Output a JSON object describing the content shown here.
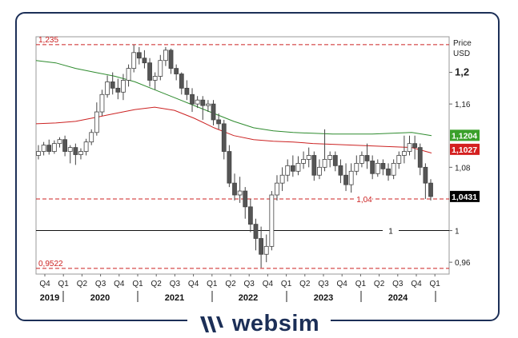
{
  "brand": {
    "name": "websim",
    "logo_icon": "websim-logo-icon"
  },
  "chart_data": {
    "type": "candlestick",
    "title": "",
    "ylabel_lines": [
      "Price",
      "USD"
    ],
    "ylim": [
      0.945,
      1.245
    ],
    "y_ticks": [
      {
        "value": 1.2,
        "label": "1,2",
        "bold": true
      },
      {
        "value": 1.16,
        "label": "1,16"
      },
      {
        "value": 1.08,
        "label": "1,08"
      },
      {
        "value": 1.0,
        "label": "1"
      },
      {
        "value": 0.96,
        "label": "0,96"
      }
    ],
    "x_ticks": [
      "Q4",
      "Q1",
      "Q2",
      "Q3",
      "Q4",
      "Q1",
      "Q2",
      "Q3",
      "Q4",
      "Q1",
      "Q2",
      "Q3",
      "Q4",
      "Q1",
      "Q2",
      "Q3",
      "Q4",
      "Q1",
      "Q2",
      "Q3",
      "Q4",
      "Q1"
    ],
    "years": [
      "2019",
      "2020",
      "2021",
      "2022",
      "2023",
      "2024"
    ],
    "reference_lines": [
      {
        "value": 1.235,
        "label": "1,235",
        "color": "#cc2222",
        "dashed": true,
        "label_pos": "left"
      },
      {
        "value": 1.04,
        "label": "1,04",
        "color": "#cc2222",
        "dashed": true,
        "label_pos": "mid"
      },
      {
        "value": 1.0,
        "label": "1",
        "color": "#111111",
        "dashed": false,
        "label_pos": "mid"
      },
      {
        "value": 0.9522,
        "label": "0,9522",
        "color": "#cc2222",
        "dashed": true,
        "label_pos": "left"
      }
    ],
    "price_tags": [
      {
        "value": 1.1204,
        "label": "1,1204",
        "color": "#3aa02a"
      },
      {
        "value": 1.1027,
        "label": "1,1027",
        "color": "#d42020"
      },
      {
        "value": 1.0431,
        "label": "1,0431",
        "color": "#000000"
      }
    ],
    "moving_averages": [
      {
        "color": "#2e8b2e",
        "values": [
          [
            0.0,
            1.215
          ],
          [
            0.05,
            1.212
          ],
          [
            0.1,
            1.205
          ],
          [
            0.15,
            1.2
          ],
          [
            0.2,
            1.195
          ],
          [
            0.25,
            1.188
          ],
          [
            0.3,
            1.178
          ],
          [
            0.35,
            1.168
          ],
          [
            0.4,
            1.158
          ],
          [
            0.45,
            1.148
          ],
          [
            0.5,
            1.138
          ],
          [
            0.55,
            1.13
          ],
          [
            0.6,
            1.126
          ],
          [
            0.65,
            1.124
          ],
          [
            0.7,
            1.123
          ],
          [
            0.75,
            1.122
          ],
          [
            0.8,
            1.122
          ],
          [
            0.85,
            1.122
          ],
          [
            0.9,
            1.123
          ],
          [
            0.95,
            1.124
          ],
          [
            1.0,
            1.12
          ]
        ]
      },
      {
        "color": "#cc2222",
        "values": [
          [
            0.0,
            1.135
          ],
          [
            0.05,
            1.136
          ],
          [
            0.1,
            1.138
          ],
          [
            0.15,
            1.143
          ],
          [
            0.2,
            1.148
          ],
          [
            0.25,
            1.153
          ],
          [
            0.3,
            1.156
          ],
          [
            0.35,
            1.152
          ],
          [
            0.4,
            1.142
          ],
          [
            0.45,
            1.13
          ],
          [
            0.5,
            1.12
          ],
          [
            0.55,
            1.115
          ],
          [
            0.6,
            1.113
          ],
          [
            0.65,
            1.112
          ],
          [
            0.7,
            1.11
          ],
          [
            0.75,
            1.109
          ],
          [
            0.8,
            1.108
          ],
          [
            0.85,
            1.107
          ],
          [
            0.9,
            1.106
          ],
          [
            0.95,
            1.105
          ],
          [
            1.0,
            1.098
          ]
        ]
      }
    ],
    "candles": [
      [
        1.095,
        1.1,
        1.108,
        1.09
      ],
      [
        1.1,
        1.108,
        1.112,
        1.095
      ],
      [
        1.108,
        1.1,
        1.115,
        1.096
      ],
      [
        1.1,
        1.11,
        1.114,
        1.097
      ],
      [
        1.11,
        1.115,
        1.118,
        1.105
      ],
      [
        1.115,
        1.1,
        1.12,
        1.094
      ],
      [
        1.1,
        1.105,
        1.108,
        1.085
      ],
      [
        1.105,
        1.096,
        1.11,
        1.083
      ],
      [
        1.096,
        1.1,
        1.104,
        1.09
      ],
      [
        1.1,
        1.112,
        1.116,
        1.095
      ],
      [
        1.112,
        1.124,
        1.128,
        1.108
      ],
      [
        1.124,
        1.15,
        1.162,
        1.12
      ],
      [
        1.15,
        1.172,
        1.178,
        1.145
      ],
      [
        1.172,
        1.188,
        1.196,
        1.168
      ],
      [
        1.188,
        1.18,
        1.2,
        1.172
      ],
      [
        1.18,
        1.175,
        1.192,
        1.166
      ],
      [
        1.175,
        1.19,
        1.198,
        1.165
      ],
      [
        1.19,
        1.205,
        1.21,
        1.182
      ],
      [
        1.205,
        1.225,
        1.235,
        1.2
      ],
      [
        1.225,
        1.218,
        1.232,
        1.21
      ],
      [
        1.218,
        1.212,
        1.228,
        1.205
      ],
      [
        1.212,
        1.19,
        1.218,
        1.182
      ],
      [
        1.19,
        1.195,
        1.2,
        1.178
      ],
      [
        1.195,
        1.215,
        1.222,
        1.19
      ],
      [
        1.215,
        1.228,
        1.232,
        1.208
      ],
      [
        1.228,
        1.205,
        1.23,
        1.198
      ],
      [
        1.205,
        1.198,
        1.21,
        1.19
      ],
      [
        1.198,
        1.18,
        1.2,
        1.172
      ],
      [
        1.18,
        1.172,
        1.19,
        1.165
      ],
      [
        1.172,
        1.16,
        1.18,
        1.15
      ],
      [
        1.16,
        1.165,
        1.17,
        1.155
      ],
      [
        1.165,
        1.158,
        1.17,
        1.14
      ],
      [
        1.158,
        1.16,
        1.165,
        1.15
      ],
      [
        1.16,
        1.14,
        1.165,
        1.133
      ],
      [
        1.14,
        1.135,
        1.148,
        1.128
      ],
      [
        1.135,
        1.1,
        1.14,
        1.09
      ],
      [
        1.1,
        1.06,
        1.108,
        1.055
      ],
      [
        1.06,
        1.045,
        1.072,
        1.038
      ],
      [
        1.045,
        1.05,
        1.068,
        1.035
      ],
      [
        1.05,
        1.03,
        1.055,
        1.015
      ],
      [
        1.03,
        1.008,
        1.04,
        0.998
      ],
      [
        1.008,
        0.99,
        1.015,
        0.975
      ],
      [
        0.99,
        0.97,
        1.005,
        0.953
      ],
      [
        0.97,
        0.98,
        0.995,
        0.96
      ],
      [
        0.98,
        1.045,
        1.05,
        0.975
      ],
      [
        1.045,
        1.06,
        1.07,
        1.038
      ],
      [
        1.06,
        1.07,
        1.08,
        1.05
      ],
      [
        1.07,
        1.082,
        1.09,
        1.062
      ],
      [
        1.082,
        1.075,
        1.095,
        1.068
      ],
      [
        1.075,
        1.085,
        1.094,
        1.07
      ],
      [
        1.085,
        1.09,
        1.1,
        1.078
      ],
      [
        1.09,
        1.095,
        1.105,
        1.08
      ],
      [
        1.095,
        1.07,
        1.1,
        1.063
      ],
      [
        1.07,
        1.08,
        1.09,
        1.065
      ],
      [
        1.08,
        1.09,
        1.128,
        1.075
      ],
      [
        1.09,
        1.095,
        1.1,
        1.08
      ],
      [
        1.095,
        1.082,
        1.1,
        1.075
      ],
      [
        1.082,
        1.07,
        1.09,
        1.06
      ],
      [
        1.07,
        1.058,
        1.085,
        1.05
      ],
      [
        1.058,
        1.075,
        1.085,
        1.048
      ],
      [
        1.075,
        1.085,
        1.095,
        1.07
      ],
      [
        1.085,
        1.095,
        1.1,
        1.08
      ],
      [
        1.095,
        1.088,
        1.11,
        1.078
      ],
      [
        1.088,
        1.072,
        1.095,
        1.065
      ],
      [
        1.072,
        1.085,
        1.09,
        1.068
      ],
      [
        1.085,
        1.078,
        1.09,
        1.07
      ],
      [
        1.078,
        1.07,
        1.085,
        1.063
      ],
      [
        1.07,
        1.085,
        1.09,
        1.065
      ],
      [
        1.085,
        1.095,
        1.1,
        1.078
      ],
      [
        1.095,
        1.1,
        1.12,
        1.085
      ],
      [
        1.1,
        1.11,
        1.12,
        1.095
      ],
      [
        1.11,
        1.105,
        1.12,
        1.09
      ],
      [
        1.105,
        1.08,
        1.11,
        1.07
      ],
      [
        1.08,
        1.06,
        1.085,
        1.04
      ],
      [
        1.06,
        1.043,
        1.065,
        1.038
      ]
    ]
  }
}
